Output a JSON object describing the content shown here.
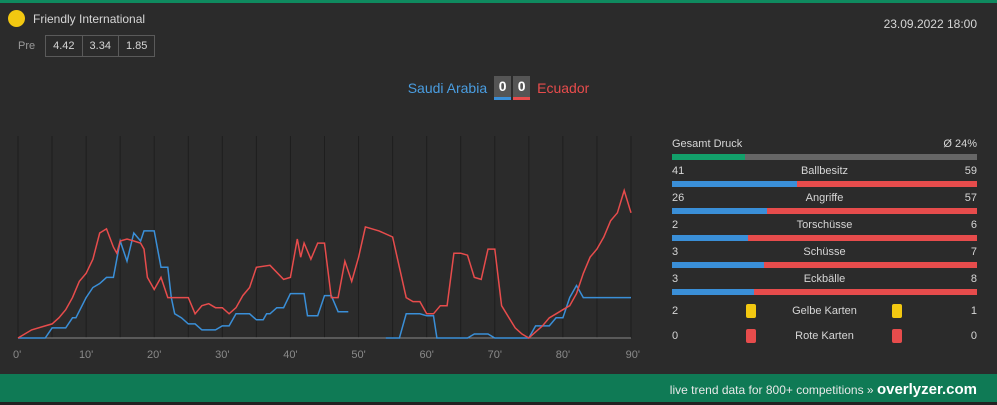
{
  "header": {
    "competition": "Friendly International",
    "datetime": "23.09.2022 18:00",
    "pre_label": "Pre",
    "odds": [
      "4.42",
      "3.34",
      "1.85"
    ],
    "league_color": "#f2c811"
  },
  "match": {
    "home_team": "Saudi Arabia",
    "away_team": "Ecuador",
    "home_score": "0",
    "away_score": "0",
    "home_color": "#4a9de0",
    "away_color": "#e74c4c"
  },
  "chart_data": {
    "type": "line",
    "x_ticks": [
      "0'",
      "10'",
      "20'",
      "30'",
      "40'",
      "50'",
      "60'",
      "70'",
      "80'",
      "90'"
    ],
    "xlim": [
      0,
      90
    ],
    "ylim": [
      0,
      100
    ],
    "grid": true,
    "series": [
      {
        "team": "home",
        "color": "#3a8fd8",
        "points": [
          [
            0,
            0
          ],
          [
            4,
            0
          ],
          [
            5,
            5
          ],
          [
            7,
            5
          ],
          [
            8,
            10
          ],
          [
            8.5,
            10
          ],
          [
            10,
            20
          ],
          [
            11,
            25
          ],
          [
            12,
            27
          ],
          [
            13,
            30
          ],
          [
            14,
            30
          ],
          [
            15,
            48
          ],
          [
            16,
            38
          ],
          [
            17,
            52
          ],
          [
            18,
            48
          ],
          [
            18.5,
            53
          ],
          [
            20,
            53
          ],
          [
            21,
            35
          ],
          [
            22,
            35
          ],
          [
            22.5,
            20
          ],
          [
            23,
            12
          ],
          [
            24,
            10
          ],
          [
            25,
            7
          ],
          [
            26,
            7
          ],
          [
            27,
            4
          ],
          [
            29,
            4
          ],
          [
            30,
            6
          ],
          [
            31,
            6
          ],
          [
            32,
            12
          ],
          [
            34,
            12
          ],
          [
            35,
            9
          ],
          [
            36,
            9
          ],
          [
            36.5,
            12
          ],
          [
            37,
            12
          ],
          [
            38,
            15
          ],
          [
            39,
            15
          ],
          [
            40,
            22
          ],
          [
            42,
            22
          ],
          [
            42.5,
            11
          ],
          [
            44,
            11
          ],
          [
            45,
            21
          ],
          [
            46,
            21
          ],
          [
            47,
            13
          ],
          [
            48,
            13
          ],
          [
            48.5,
            13
          ]
        ],
        "segment2": [
          [
            54,
            0
          ],
          [
            56,
            0
          ],
          [
            57,
            12
          ],
          [
            59,
            12
          ],
          [
            60,
            11
          ],
          [
            61,
            11
          ],
          [
            61.5,
            0
          ],
          [
            63,
            0
          ],
          [
            64,
            0
          ],
          [
            66,
            0
          ],
          [
            67,
            2
          ],
          [
            69,
            2
          ],
          [
            70,
            0
          ],
          [
            72,
            0
          ],
          [
            73,
            0
          ],
          [
            75,
            0
          ],
          [
            76,
            6
          ],
          [
            78,
            6
          ],
          [
            79,
            10
          ],
          [
            80,
            10
          ],
          [
            81,
            20
          ],
          [
            82,
            26
          ],
          [
            83,
            20
          ],
          [
            84,
            20
          ],
          [
            85,
            20
          ],
          [
            90,
            20
          ]
        ]
      },
      {
        "team": "away",
        "color": "#e74c4c",
        "points": [
          [
            0,
            0
          ],
          [
            2,
            4
          ],
          [
            4,
            6
          ],
          [
            5,
            7
          ],
          [
            6,
            10
          ],
          [
            7,
            14
          ],
          [
            8,
            20
          ],
          [
            9,
            28
          ],
          [
            10,
            32
          ],
          [
            11,
            39
          ],
          [
            12,
            52
          ],
          [
            13,
            54
          ],
          [
            14,
            45
          ],
          [
            14.5,
            42
          ],
          [
            15,
            48
          ],
          [
            16,
            49
          ],
          [
            17,
            48
          ],
          [
            18,
            47
          ],
          [
            18.5,
            44
          ],
          [
            19,
            30
          ],
          [
            20,
            24
          ],
          [
            21,
            30
          ],
          [
            22,
            20
          ],
          [
            23,
            20
          ],
          [
            24,
            20
          ],
          [
            25,
            20
          ],
          [
            26,
            12
          ],
          [
            27,
            16
          ],
          [
            28,
            17
          ],
          [
            29,
            15
          ],
          [
            30,
            15
          ],
          [
            31,
            12
          ],
          [
            32,
            15
          ],
          [
            33,
            21
          ],
          [
            34,
            25
          ],
          [
            35,
            35
          ],
          [
            37,
            36
          ],
          [
            39,
            29
          ],
          [
            40,
            30
          ],
          [
            41,
            49
          ],
          [
            41.5,
            40
          ],
          [
            42,
            47
          ],
          [
            43,
            39
          ],
          [
            44,
            47
          ],
          [
            45,
            47
          ],
          [
            46,
            20
          ],
          [
            47,
            20
          ],
          [
            48,
            38
          ],
          [
            49,
            28
          ],
          [
            50,
            40
          ],
          [
            51,
            55
          ],
          [
            53,
            53
          ],
          [
            55,
            50
          ],
          [
            56,
            35
          ],
          [
            57,
            20
          ],
          [
            58,
            18
          ],
          [
            59,
            18
          ],
          [
            60,
            12
          ],
          [
            61,
            12
          ],
          [
            62,
            16
          ],
          [
            63,
            16
          ],
          [
            64,
            42
          ],
          [
            65,
            42
          ],
          [
            66,
            41
          ],
          [
            67,
            30
          ],
          [
            68,
            29
          ],
          [
            69,
            44
          ],
          [
            70,
            44
          ],
          [
            71,
            16
          ],
          [
            73,
            5
          ],
          [
            74,
            2
          ],
          [
            75,
            0
          ],
          [
            76,
            3
          ],
          [
            77,
            6
          ],
          [
            78,
            10
          ],
          [
            79,
            12
          ],
          [
            80,
            14
          ],
          [
            81,
            16
          ],
          [
            82,
            22
          ],
          [
            83,
            32
          ],
          [
            84,
            40
          ],
          [
            85,
            44
          ],
          [
            86,
            50
          ],
          [
            87,
            58
          ],
          [
            88,
            62
          ],
          [
            89,
            73
          ],
          [
            90,
            62
          ]
        ]
      }
    ]
  },
  "stats": {
    "pressure_label": "Gesamt Druck",
    "pressure_value": "Ø 24%",
    "pressure_fraction": 0.24,
    "items": [
      {
        "label": "Ballbesitz",
        "home": "41",
        "away": "59",
        "home_frac": 0.41
      },
      {
        "label": "Angriffe",
        "home": "26",
        "away": "57",
        "home_frac": 0.31
      },
      {
        "label": "Torschüsse",
        "home": "2",
        "away": "6",
        "home_frac": 0.25
      },
      {
        "label": "Schüsse",
        "home": "3",
        "away": "7",
        "home_frac": 0.3
      },
      {
        "label": "Eckbälle",
        "home": "3",
        "away": "8",
        "home_frac": 0.27
      }
    ],
    "cards": [
      {
        "label": "Gelbe Karten",
        "home": "2",
        "away": "1",
        "color": "#f2c811"
      },
      {
        "label": "Rote Karten",
        "home": "0",
        "away": "0",
        "color": "#e74c4c"
      }
    ]
  },
  "footer": {
    "text": "live trend data for 800+ competitions »",
    "brand": "overlyzer.com"
  }
}
